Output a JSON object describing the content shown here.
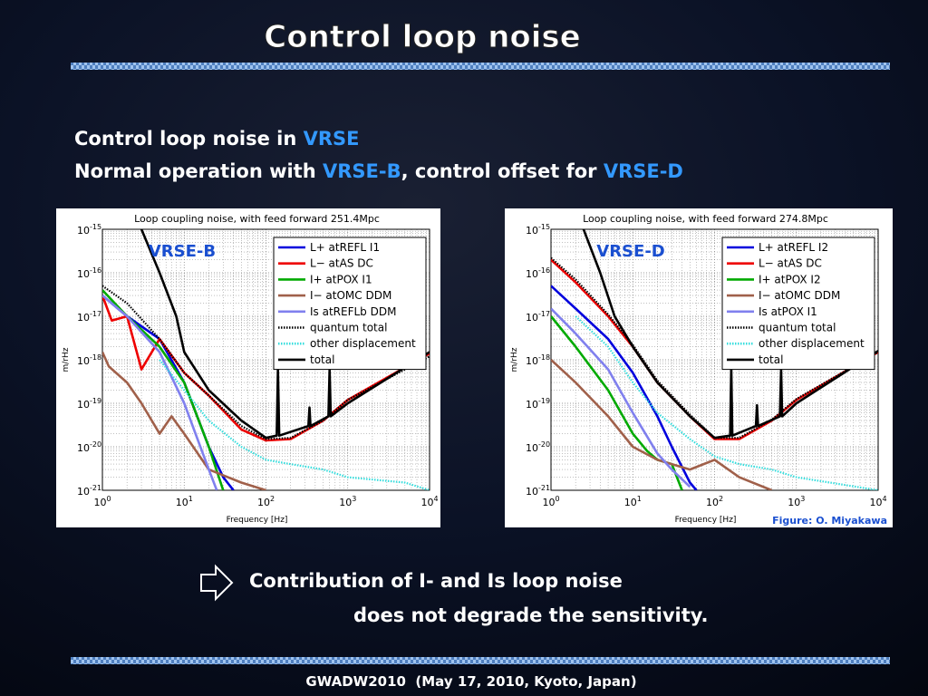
{
  "title": "Control loop noise",
  "intro": {
    "line1": [
      "Control loop noise in ",
      "VRSE"
    ],
    "line2": [
      "Normal operation with ",
      "VRSE-B",
      ", control offset for ",
      "VRSE-D"
    ]
  },
  "conclusion": [
    "Contribution of I- and Is loop noise",
    "does not degrade the sensitivity."
  ],
  "credit": "Figure: O. Miyakawa",
  "footer": "GWADW2010  (May 17, 2010, Kyoto, Japan)",
  "chart_data": [
    {
      "type": "line",
      "title": "Loop coupling noise, with feed forward 251.4Mpc",
      "label": "VRSE-B",
      "xlabel": "Frequency [Hz]",
      "ylabel": "m/rHz",
      "xscale": "log",
      "yscale": "log",
      "grid": true,
      "legend": "upper right",
      "xlim": [
        1,
        10000
      ],
      "ylim": [
        1e-21,
        1e-15
      ],
      "xticks": [
        {
          "value": 1,
          "label": "10",
          "exponent": "0"
        },
        {
          "value": 10,
          "label": "10",
          "exponent": "1"
        },
        {
          "value": 100,
          "label": "10",
          "exponent": "2"
        },
        {
          "value": 1000,
          "label": "10",
          "exponent": "3"
        },
        {
          "value": 10000,
          "label": "10",
          "exponent": "4"
        }
      ],
      "yticks": [
        {
          "value": 1e-21,
          "label": "10",
          "exponent": "-21"
        },
        {
          "value": 1e-20,
          "label": "10",
          "exponent": "-20"
        },
        {
          "value": 1e-19,
          "label": "10",
          "exponent": "-19"
        },
        {
          "value": 1e-18,
          "label": "10",
          "exponent": "-18"
        },
        {
          "value": 1e-17,
          "label": "10",
          "exponent": "-17"
        },
        {
          "value": 1e-16,
          "label": "10",
          "exponent": "-16"
        },
        {
          "value": 1e-15,
          "label": "10",
          "exponent": "-15"
        }
      ],
      "series": [
        {
          "name": "L+ atREFL I1",
          "color": "#0000dd",
          "style": "solid",
          "x": [
            1,
            2,
            5,
            10,
            20,
            30,
            40
          ],
          "values": [
            3e-17,
            1e-17,
            3e-18,
            3e-19,
            1e-20,
            2e-21,
            1e-21
          ]
        },
        {
          "name": "L− atAS DC",
          "color": "#ee0000",
          "style": "solid",
          "x": [
            1,
            1.3,
            2,
            3,
            5,
            10,
            20,
            50,
            100,
            200,
            500,
            1000,
            10000
          ],
          "values": [
            3e-17,
            8e-18,
            1e-17,
            6e-19,
            3e-18,
            5e-19,
            1.5e-19,
            2.5e-20,
            1.4e-20,
            1.5e-20,
            4e-20,
            1.2e-19,
            1.4e-18
          ]
        },
        {
          "name": "I+ atPOX I1",
          "color": "#00aa00",
          "style": "solid",
          "x": [
            1,
            2,
            5,
            10,
            20,
            30
          ],
          "values": [
            4e-17,
            1e-17,
            2e-18,
            3e-19,
            1e-20,
            1e-21
          ]
        },
        {
          "name": "I− atOMC DDM",
          "color": "#a0604a",
          "style": "solid",
          "x": [
            1,
            1.2,
            2,
            3,
            5,
            7,
            10,
            20,
            50,
            100
          ],
          "values": [
            1.5e-18,
            7e-19,
            3e-19,
            1e-19,
            2e-20,
            5e-20,
            2e-20,
            3e-21,
            1.5e-21,
            1e-21
          ]
        },
        {
          "name": "Is atREFLb DDM",
          "color": "#8080ee",
          "style": "solid",
          "x": [
            1,
            2,
            5,
            10,
            20,
            25
          ],
          "values": [
            3e-17,
            1e-17,
            1.5e-18,
            1e-19,
            3e-21,
            1e-21
          ]
        },
        {
          "name": "quantum total",
          "color": "#000000",
          "style": "dotted",
          "x": [
            1,
            2,
            5,
            10,
            20,
            50,
            100,
            200,
            500,
            1000,
            10000
          ],
          "values": [
            5e-17,
            2e-17,
            3e-18,
            5e-19,
            1.5e-19,
            3e-20,
            1.5e-20,
            1.6e-20,
            4e-20,
            1.2e-19,
            1.2e-18
          ]
        },
        {
          "name": "other displacement",
          "color": "#33dddd",
          "style": "dotted",
          "x": [
            5,
            10,
            20,
            50,
            100,
            200,
            500,
            1000,
            5000,
            10000
          ],
          "values": [
            1e-18,
            2e-19,
            4e-20,
            1e-20,
            5e-21,
            4e-21,
            3e-21,
            2e-21,
            1.5e-21,
            1e-21
          ]
        },
        {
          "name": "total",
          "color": "#000000",
          "style": "solid",
          "x": [
            3,
            5,
            8,
            10,
            20,
            50,
            100,
            135,
            140,
            145,
            330,
            340,
            350,
            580,
            600,
            620,
            1000,
            10000
          ],
          "values": [
            1e-15,
            1e-16,
            1e-17,
            1.5e-18,
            2e-19,
            4e-20,
            1.6e-20,
            1.8e-20,
            6e-19,
            1.8e-20,
            3e-20,
            8e-20,
            3e-20,
            5e-20,
            6e-19,
            5e-20,
            1e-19,
            1.5e-18
          ]
        }
      ]
    },
    {
      "type": "line",
      "title": "Loop coupling noise, with feed forward 274.8Mpc",
      "label": "VRSE-D",
      "xlabel": "Frequency [Hz]",
      "ylabel": "m/rHz",
      "xscale": "log",
      "yscale": "log",
      "grid": true,
      "legend": "upper right",
      "xlim": [
        1,
        10000
      ],
      "ylim": [
        1e-21,
        1e-15
      ],
      "xticks": [
        {
          "value": 1,
          "label": "10",
          "exponent": "0"
        },
        {
          "value": 10,
          "label": "10",
          "exponent": "1"
        },
        {
          "value": 100,
          "label": "10",
          "exponent": "2"
        },
        {
          "value": 1000,
          "label": "10",
          "exponent": "3"
        },
        {
          "value": 10000,
          "label": "10",
          "exponent": "4"
        }
      ],
      "yticks": [
        {
          "value": 1e-21,
          "label": "10",
          "exponent": "-21"
        },
        {
          "value": 1e-20,
          "label": "10",
          "exponent": "-20"
        },
        {
          "value": 1e-19,
          "label": "10",
          "exponent": "-19"
        },
        {
          "value": 1e-18,
          "label": "10",
          "exponent": "-18"
        },
        {
          "value": 1e-17,
          "label": "10",
          "exponent": "-17"
        },
        {
          "value": 1e-16,
          "label": "10",
          "exponent": "-16"
        },
        {
          "value": 1e-15,
          "label": "10",
          "exponent": "-15"
        }
      ],
      "series": [
        {
          "name": "L+ atREFL I2",
          "color": "#0000dd",
          "style": "solid",
          "x": [
            1,
            2,
            5,
            10,
            20,
            30,
            50,
            60
          ],
          "values": [
            5e-17,
            1.5e-17,
            3e-18,
            5e-19,
            5e-20,
            1e-20,
            1.5e-21,
            1e-21
          ]
        },
        {
          "name": "L− atAS DC",
          "color": "#ee0000",
          "style": "solid",
          "x": [
            1,
            2,
            5,
            10,
            20,
            50,
            100,
            200,
            500,
            1000,
            10000
          ],
          "values": [
            2e-16,
            6e-17,
            1e-17,
            2e-18,
            3e-19,
            5e-20,
            1.5e-20,
            1.5e-20,
            4e-20,
            1.2e-19,
            1.5e-18
          ]
        },
        {
          "name": "I+ atPOX I2",
          "color": "#00aa00",
          "style": "solid",
          "x": [
            1,
            2,
            5,
            10,
            15,
            20,
            30,
            40
          ],
          "values": [
            1e-17,
            2e-18,
            2e-19,
            2e-20,
            8e-21,
            5e-21,
            4e-21,
            1e-21
          ]
        },
        {
          "name": "I− atOMC DDM",
          "color": "#a0604a",
          "style": "solid",
          "x": [
            1,
            2,
            5,
            10,
            20,
            50,
            100,
            200,
            500
          ],
          "values": [
            1e-18,
            3e-19,
            5e-20,
            1e-20,
            5e-21,
            3e-21,
            5e-21,
            2e-21,
            1e-21
          ]
        },
        {
          "name": "Is atPOX I1",
          "color": "#8080ee",
          "style": "solid",
          "x": [
            1,
            2,
            5,
            10,
            20,
            30,
            50
          ],
          "values": [
            1.5e-17,
            4e-18,
            6e-19,
            6e-20,
            7e-21,
            3e-21,
            1.2e-21
          ]
        },
        {
          "name": "quantum total",
          "color": "#000000",
          "style": "dotted",
          "x": [
            1,
            2,
            5,
            10,
            20,
            50,
            100,
            200,
            500,
            1000,
            10000
          ],
          "values": [
            2.2e-16,
            7e-17,
            1.1e-17,
            2.2e-18,
            3.3e-19,
            5.5e-20,
            1.6e-20,
            1.6e-20,
            4.2e-20,
            1.25e-19,
            1.5e-18
          ]
        },
        {
          "name": "other displacement",
          "color": "#33dddd",
          "style": "dotted",
          "x": [
            2,
            5,
            10,
            20,
            50,
            100,
            200,
            500,
            1000,
            10000
          ],
          "values": [
            1e-17,
            2e-18,
            3e-19,
            6e-20,
            1.5e-20,
            6e-21,
            4e-21,
            3e-21,
            2e-21,
            1e-21
          ]
        },
        {
          "name": "total",
          "color": "#000000",
          "style": "solid",
          "x": [
            2.5,
            4,
            6,
            10,
            20,
            50,
            100,
            155,
            160,
            165,
            320,
            330,
            340,
            630,
            650,
            670,
            1000,
            10000
          ],
          "values": [
            1e-15,
            1e-16,
            1e-17,
            2e-18,
            3e-19,
            5e-20,
            1.6e-20,
            1.8e-20,
            7e-19,
            1.8e-20,
            3e-20,
            9e-20,
            3e-20,
            5e-20,
            6e-19,
            5e-20,
            1e-19,
            1.6e-18
          ]
        }
      ]
    }
  ]
}
